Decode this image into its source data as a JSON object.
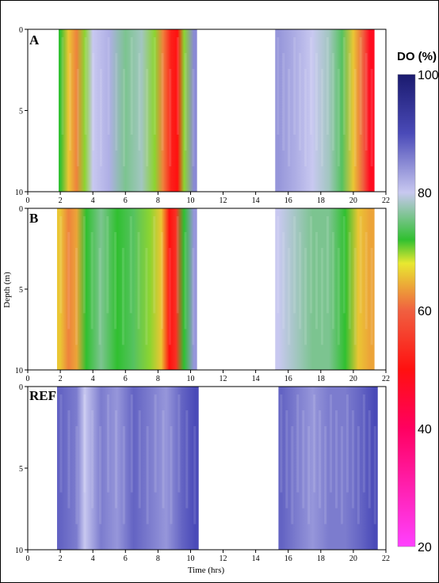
{
  "chart_data": [
    {
      "type": "heatmap",
      "panel": "A",
      "xlabel": "",
      "ylabel": "",
      "xlim": [
        0,
        22
      ],
      "ylim": [
        0,
        10
      ],
      "x_ticks": [
        0,
        2,
        4,
        6,
        8,
        10,
        12,
        14,
        16,
        18,
        20,
        22
      ],
      "y_ticks": [
        0,
        5,
        10
      ],
      "data_segments": [
        {
          "x_start": 1.9,
          "x_end": 10.4
        },
        {
          "x_start": 15.2,
          "x_end": 21.3
        }
      ],
      "columns": [
        {
          "x": 2.0,
          "do": 72
        },
        {
          "x": 2.5,
          "do": 66
        },
        {
          "x": 3.0,
          "do": 62
        },
        {
          "x": 3.5,
          "do": 70
        },
        {
          "x": 4.0,
          "do": 80
        },
        {
          "x": 5.0,
          "do": 82
        },
        {
          "x": 6.0,
          "do": 76
        },
        {
          "x": 7.0,
          "do": 78
        },
        {
          "x": 7.8,
          "do": 70
        },
        {
          "x": 8.3,
          "do": 62
        },
        {
          "x": 8.8,
          "do": 52
        },
        {
          "x": 9.2,
          "do": 50
        },
        {
          "x": 9.6,
          "do": 70
        },
        {
          "x": 10.2,
          "do": 85
        },
        {
          "x": 15.4,
          "do": 84
        },
        {
          "x": 16.5,
          "do": 82
        },
        {
          "x": 17.5,
          "do": 80
        },
        {
          "x": 18.5,
          "do": 78
        },
        {
          "x": 19.3,
          "do": 74
        },
        {
          "x": 20.0,
          "do": 66
        },
        {
          "x": 20.6,
          "do": 60
        },
        {
          "x": 21.0,
          "do": 48
        }
      ]
    },
    {
      "type": "heatmap",
      "panel": "B",
      "xlabel": "",
      "ylabel": "Depth (m)",
      "xlim": [
        0,
        22
      ],
      "ylim": [
        0,
        10
      ],
      "x_ticks": [
        0,
        2,
        4,
        6,
        8,
        10,
        12,
        14,
        16,
        18,
        20,
        22
      ],
      "y_ticks": [
        0,
        5,
        10
      ],
      "data_segments": [
        {
          "x_start": 1.8,
          "x_end": 10.4
        },
        {
          "x_start": 15.2,
          "x_end": 21.3
        }
      ],
      "columns": [
        {
          "x": 2.0,
          "do": 66
        },
        {
          "x": 2.5,
          "do": 62
        },
        {
          "x": 3.0,
          "do": 64
        },
        {
          "x": 3.6,
          "do": 72
        },
        {
          "x": 4.5,
          "do": 76
        },
        {
          "x": 5.5,
          "do": 72
        },
        {
          "x": 6.5,
          "do": 74
        },
        {
          "x": 7.5,
          "do": 70
        },
        {
          "x": 8.2,
          "do": 66
        },
        {
          "x": 8.7,
          "do": 50
        },
        {
          "x": 9.1,
          "do": 54
        },
        {
          "x": 9.6,
          "do": 72
        },
        {
          "x": 10.2,
          "do": 84
        },
        {
          "x": 15.4,
          "do": 80
        },
        {
          "x": 16.5,
          "do": 78
        },
        {
          "x": 17.5,
          "do": 76
        },
        {
          "x": 18.5,
          "do": 76
        },
        {
          "x": 19.5,
          "do": 72
        },
        {
          "x": 20.3,
          "do": 66
        },
        {
          "x": 21.0,
          "do": 64
        }
      ]
    },
    {
      "type": "heatmap",
      "panel": "REF",
      "xlabel": "Time (hrs)",
      "ylabel": "",
      "xlim": [
        0,
        22
      ],
      "ylim": [
        0,
        10
      ],
      "x_ticks": [
        0,
        2,
        4,
        6,
        8,
        10,
        12,
        14,
        16,
        18,
        20,
        22
      ],
      "y_ticks": [
        0,
        5,
        10
      ],
      "data_segments": [
        {
          "x_start": 1.8,
          "x_end": 10.5
        },
        {
          "x_start": 15.4,
          "x_end": 21.5
        }
      ],
      "columns": [
        {
          "x": 2.0,
          "do": 88
        },
        {
          "x": 3.0,
          "do": 86
        },
        {
          "x": 3.5,
          "do": 80
        },
        {
          "x": 4.5,
          "do": 86
        },
        {
          "x": 5.5,
          "do": 84
        },
        {
          "x": 6.5,
          "do": 88
        },
        {
          "x": 7.5,
          "do": 86
        },
        {
          "x": 8.5,
          "do": 84
        },
        {
          "x": 9.5,
          "do": 88
        },
        {
          "x": 10.3,
          "do": 90
        },
        {
          "x": 15.6,
          "do": 88
        },
        {
          "x": 16.5,
          "do": 86
        },
        {
          "x": 17.5,
          "do": 84
        },
        {
          "x": 18.5,
          "do": 86
        },
        {
          "x": 19.5,
          "do": 86
        },
        {
          "x": 20.5,
          "do": 88
        },
        {
          "x": 21.3,
          "do": 90
        }
      ]
    }
  ],
  "colorbar": {
    "title": "DO (%)",
    "range": [
      20,
      100
    ],
    "ticks": [
      100,
      80,
      60,
      40,
      20
    ],
    "stops": [
      {
        "value": 100,
        "color": "#1a1a6e"
      },
      {
        "value": 90,
        "color": "#4a4ab8"
      },
      {
        "value": 80,
        "color": "#c8c8f0"
      },
      {
        "value": 72,
        "color": "#30c030"
      },
      {
        "value": 68,
        "color": "#e8e830"
      },
      {
        "value": 60,
        "color": "#f06040"
      },
      {
        "value": 50,
        "color": "#ff1010"
      },
      {
        "value": 40,
        "color": "#ff0060"
      },
      {
        "value": 20,
        "color": "#ff40ff"
      }
    ]
  },
  "labels": {
    "panel_a": "A",
    "panel_b": "B",
    "panel_ref": "REF",
    "ylabel": "Depth (m)",
    "xlabel": "Time (hrs)"
  }
}
